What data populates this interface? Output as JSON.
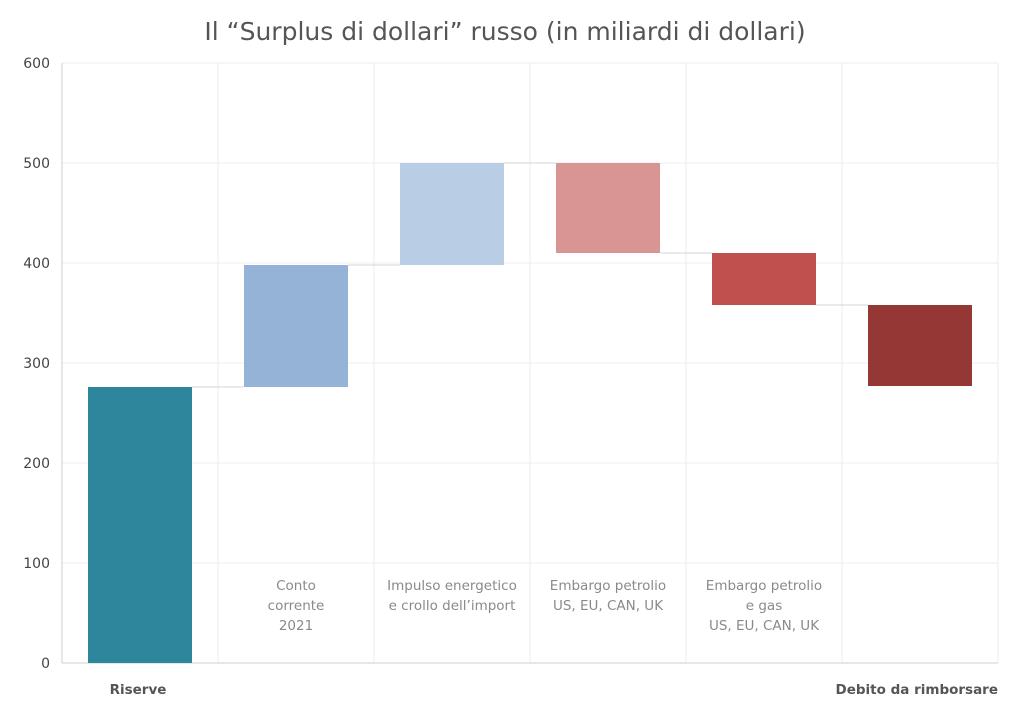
{
  "chart_data": {
    "type": "waterfall",
    "title": "Il “Surplus di dollari” russo (in miliardi di dollari)",
    "ylim": [
      0,
      600
    ],
    "yticks": [
      0,
      100,
      200,
      300,
      400,
      500,
      600
    ],
    "grid": true,
    "bars": [
      {
        "start": 0,
        "end": 276,
        "color": "#2e869c",
        "label_lines": []
      },
      {
        "start": 276,
        "end": 398,
        "color": "#95b3d7",
        "label_lines": [
          "Conto",
          "corrente",
          "2021"
        ]
      },
      {
        "start": 398,
        "end": 500,
        "color": "#b9cde5",
        "label_lines": [
          "Impulso energetico",
          "e crollo dell’import"
        ]
      },
      {
        "start": 500,
        "end": 410,
        "color": "#d99593",
        "label_lines": [
          "Embargo petrolio",
          "US, EU, CAN, UK"
        ]
      },
      {
        "start": 410,
        "end": 358,
        "color": "#c0504d",
        "label_lines": [
          "Embargo petrolio",
          "e gas",
          "US, EU, CAN, UK"
        ]
      },
      {
        "start": 358,
        "end": 277,
        "color": "#953735",
        "label_lines": []
      }
    ],
    "bottom_labels": {
      "left": "Riserve",
      "right": "Debito da rimborsare"
    }
  }
}
